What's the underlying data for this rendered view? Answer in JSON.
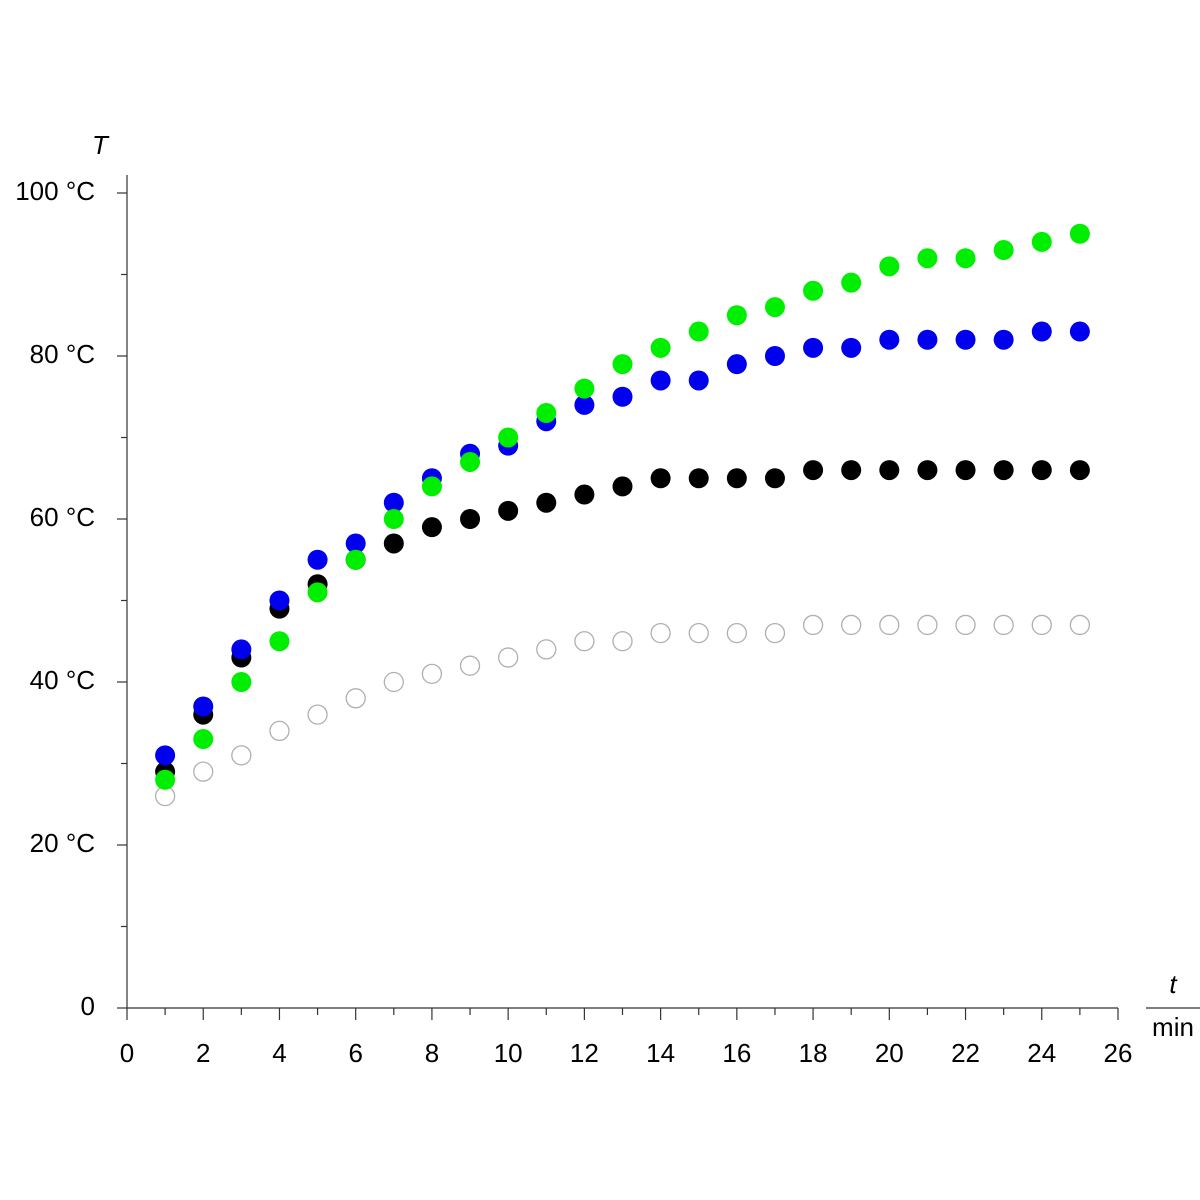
{
  "chart_data": {
    "type": "scatter",
    "y_label": "T",
    "x_label_numerator": "t",
    "x_label_denominator": "min",
    "x": [
      1,
      2,
      3,
      4,
      5,
      6,
      7,
      8,
      9,
      10,
      11,
      12,
      13,
      14,
      15,
      16,
      17,
      18,
      19,
      20,
      21,
      22,
      23,
      24,
      25
    ],
    "series": [
      {
        "color": "#b0b0b0",
        "marker": "open",
        "values": [
          26,
          29,
          31,
          34,
          36,
          38,
          40,
          41,
          42,
          43,
          44,
          45,
          45,
          46,
          46,
          46,
          46,
          47,
          47,
          47,
          47,
          47,
          47,
          47,
          47
        ]
      },
      {
        "color": "#000000",
        "marker": "filled",
        "values": [
          29,
          36,
          43,
          49,
          52,
          55,
          57,
          59,
          60,
          61,
          62,
          63,
          64,
          65,
          65,
          65,
          65,
          66,
          66,
          66,
          66,
          66,
          66,
          66,
          66
        ]
      },
      {
        "color": "#0000ee",
        "marker": "filled",
        "values": [
          31,
          37,
          44,
          50,
          55,
          57,
          62,
          65,
          68,
          69,
          72,
          74,
          75,
          77,
          77,
          79,
          80,
          81,
          81,
          82,
          82,
          82,
          82,
          83,
          83
        ]
      },
      {
        "color": "#00ee00",
        "marker": "filled",
        "values": [
          28,
          33,
          40,
          45,
          51,
          55,
          60,
          64,
          67,
          70,
          73,
          76,
          79,
          81,
          83,
          85,
          86,
          88,
          89,
          91,
          92,
          92,
          93,
          94,
          95
        ]
      }
    ],
    "xlim": [
      0,
      26
    ],
    "xticks": [
      0,
      2,
      4,
      6,
      8,
      10,
      12,
      14,
      16,
      18,
      20,
      22,
      24,
      26
    ],
    "xminorticks": [
      1,
      3,
      5,
      7,
      9,
      11,
      13,
      15,
      17,
      19,
      21,
      23,
      25
    ],
    "ylim": [
      0,
      100
    ],
    "yticks": [
      0,
      {
        "value": 20,
        "label": "20 °C"
      },
      {
        "value": 40,
        "label": "40 °C"
      },
      {
        "value": 60,
        "label": "60 °C"
      },
      {
        "value": 80,
        "label": "80 °C"
      },
      {
        "value": 100,
        "label": "100 °C"
      }
    ],
    "yminorticks": [
      10,
      30,
      50,
      70,
      90
    ],
    "grid": false
  }
}
